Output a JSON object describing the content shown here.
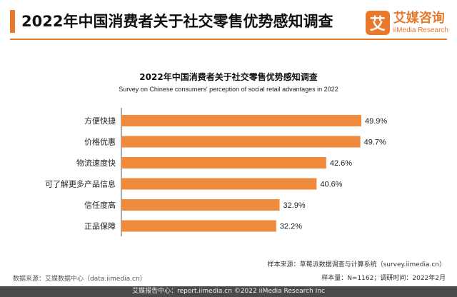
{
  "header": {
    "title": "2022年中国消费者关于社交零售优势感知调查",
    "logo_mark": "艾",
    "logo_cn": "艾媒咨询",
    "logo_en": "iiMedia Research"
  },
  "chart_data": {
    "type": "bar",
    "orientation": "horizontal",
    "title": "2022年中国消费者关于社交零售优势感知调查",
    "subtitle": "Survey on Chinese consumers' perception of social retail advantages in 2022",
    "categories": [
      "方便快捷",
      "价格优惠",
      "物流速度快",
      "可了解更多产品信息",
      "信任度高",
      "正品保障"
    ],
    "values": [
      49.9,
      49.7,
      42.6,
      40.6,
      32.9,
      32.2
    ],
    "value_labels": [
      "49.9%",
      "49.7%",
      "42.6%",
      "40.6%",
      "32.9%",
      "32.2%"
    ],
    "unit": "%",
    "xlim": [
      0,
      60
    ],
    "grid": false,
    "legend": "none",
    "bar_color": "#f08a3c"
  },
  "notes": {
    "sample_source": "样本来源：草莓派数据调查与计算系统（survey.iimedia.cn）",
    "sample_info": "样本量：N=1162；调研时间：2022年2月",
    "data_source": "数据来源：艾媒数据中心（data.iimedia.cn）"
  },
  "footer": {
    "text": "艾媒报告中心：report.iimedia.cn  ©2022  iiMedia Research Inc"
  },
  "colors": {
    "accent": "#e8792c",
    "bar": "#f08a3c",
    "footer_bg": "#4a4a4a"
  }
}
